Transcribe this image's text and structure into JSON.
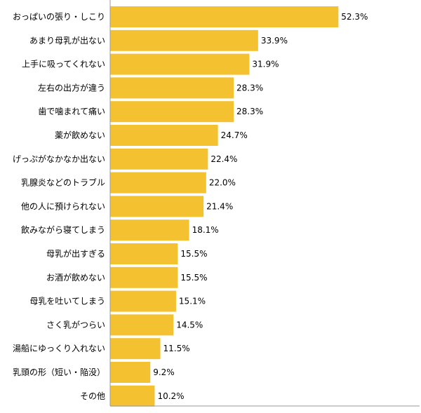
{
  "chart_data": {
    "type": "bar",
    "orientation": "horizontal",
    "categories": [
      "おっぱいの張り・しこり",
      "あまり母乳が出ない",
      "上手に吸ってくれない",
      "左右の出方が違う",
      "歯で噛まれて痛い",
      "薬が飲めない",
      "げっぷがなかなか出ない",
      "乳腺炎などのトラブル",
      "他の人に預けられない",
      "飲みながら寝てしまう",
      "母乳が出すぎる",
      "お酒が飲めない",
      "母乳を吐いてしまう",
      "さく乳がつらい",
      "湯船にゆっくり入れない",
      "乳頭の形（短い・陥没）",
      "その他"
    ],
    "values": [
      52.3,
      33.9,
      31.9,
      28.3,
      28.3,
      24.7,
      22.4,
      22.0,
      21.4,
      18.1,
      15.5,
      15.5,
      15.1,
      14.5,
      11.5,
      9.2,
      10.2
    ],
    "value_labels": [
      "52.3%",
      "33.9%",
      "31.9%",
      "28.3%",
      "28.3%",
      "24.7%",
      "22.4%",
      "22.0%",
      "21.4%",
      "18.1%",
      "15.5%",
      "15.5%",
      "15.1%",
      "14.5%",
      "11.5%",
      "9.2%",
      "10.2%"
    ],
    "title": "",
    "xlabel": "",
    "ylabel": "",
    "xlim": [
      0,
      70
    ],
    "grid": false,
    "legend": "none",
    "bar_color": "#f4c231",
    "axis_color": "#999999"
  }
}
